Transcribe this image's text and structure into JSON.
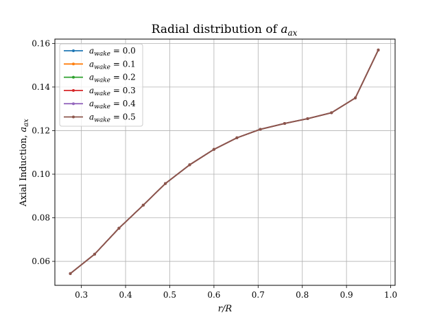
{
  "chart_data": {
    "type": "line",
    "title": {
      "main": "Radial distribution of ",
      "var": "a",
      "sub": "ax"
    },
    "xlabel": {
      "main": "r/R"
    },
    "ylabel": {
      "main": "Axial Induction, ",
      "var": "a",
      "sub": "ax"
    },
    "xlim": [
      0.24,
      1.01
    ],
    "ylim": [
      0.049,
      0.162
    ],
    "xticks": [
      0.3,
      0.4,
      0.5,
      0.6,
      0.7,
      0.8,
      0.9,
      1.0
    ],
    "xtick_labels": [
      "0.3",
      "0.4",
      "0.5",
      "0.6",
      "0.7",
      "0.8",
      "0.9",
      "1.0"
    ],
    "yticks": [
      0.06,
      0.08,
      0.1,
      0.12,
      0.14,
      0.16
    ],
    "ytick_labels": [
      "0.06",
      "0.08",
      "0.10",
      "0.12",
      "0.14",
      "0.16"
    ],
    "grid": true,
    "legend_position": "top-left",
    "x": [
      0.275,
      0.33,
      0.385,
      0.44,
      0.49,
      0.545,
      0.6,
      0.652,
      0.705,
      0.76,
      0.812,
      0.866,
      0.92,
      0.972
    ],
    "series": [
      {
        "name": {
          "var": "a",
          "sub": "wake",
          "rest": " = 0.0"
        },
        "color": "#1f77b4",
        "values": [
          0.0544,
          0.0633,
          0.0752,
          0.0858,
          0.0957,
          0.1043,
          0.1114,
          0.1167,
          0.1206,
          0.1233,
          0.1255,
          0.1282,
          0.135,
          0.157
        ]
      },
      {
        "name": {
          "var": "a",
          "sub": "wake",
          "rest": " = 0.1"
        },
        "color": "#ff7f0e",
        "values": [
          0.0544,
          0.0633,
          0.0752,
          0.0858,
          0.0957,
          0.1043,
          0.1114,
          0.1167,
          0.1206,
          0.1233,
          0.1255,
          0.1282,
          0.135,
          0.157
        ]
      },
      {
        "name": {
          "var": "a",
          "sub": "wake",
          "rest": " = 0.2"
        },
        "color": "#2ca02c",
        "values": [
          0.0544,
          0.0633,
          0.0752,
          0.0858,
          0.0957,
          0.1043,
          0.1114,
          0.1167,
          0.1206,
          0.1233,
          0.1255,
          0.1282,
          0.135,
          0.157
        ]
      },
      {
        "name": {
          "var": "a",
          "sub": "wake",
          "rest": " = 0.3"
        },
        "color": "#d62728",
        "values": [
          0.0544,
          0.0633,
          0.0752,
          0.0858,
          0.0957,
          0.1043,
          0.1114,
          0.1167,
          0.1206,
          0.1233,
          0.1255,
          0.1282,
          0.135,
          0.157
        ]
      },
      {
        "name": {
          "var": "a",
          "sub": "wake",
          "rest": " = 0.4"
        },
        "color": "#9467bd",
        "values": [
          0.0544,
          0.0633,
          0.0752,
          0.0858,
          0.0957,
          0.1043,
          0.1114,
          0.1167,
          0.1206,
          0.1233,
          0.1255,
          0.1282,
          0.135,
          0.157
        ]
      },
      {
        "name": {
          "var": "a",
          "sub": "wake",
          "rest": " = 0.5"
        },
        "color": "#8c564b",
        "values": [
          0.0544,
          0.0633,
          0.0752,
          0.0858,
          0.0957,
          0.1043,
          0.1114,
          0.1167,
          0.1206,
          0.1233,
          0.1255,
          0.1282,
          0.135,
          0.157
        ]
      }
    ]
  }
}
